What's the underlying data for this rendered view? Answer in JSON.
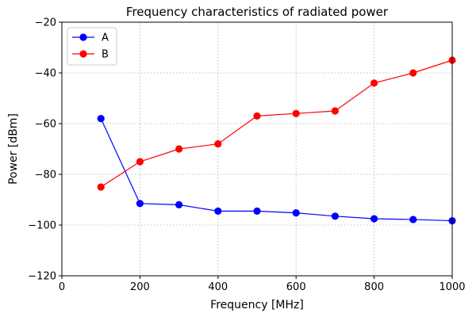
{
  "chart_data": {
    "type": "line",
    "title": "Frequency characteristics of radiated power",
    "xlabel": "Frequency [MHz]",
    "ylabel": "Power [dBm]",
    "xlim": [
      0,
      1000
    ],
    "ylim": [
      -120,
      -20
    ],
    "xticks": [
      0,
      200,
      400,
      600,
      800,
      1000
    ],
    "yticks": [
      -120,
      -100,
      -80,
      -60,
      -40,
      -20
    ],
    "grid": true,
    "legend_position": "top-left",
    "x": [
      100,
      200,
      300,
      400,
      500,
      600,
      700,
      800,
      900,
      1000
    ],
    "series": [
      {
        "name": "A",
        "color": "#0000ff",
        "values": [
          -58,
          -91.5,
          -92,
          -94.5,
          -94.5,
          -95.2,
          -96.5,
          -97.5,
          -97.8,
          -98.3
        ]
      },
      {
        "name": "B",
        "color": "#ff0000",
        "values": [
          -85,
          -75,
          -70,
          -68,
          -57,
          -56,
          -55,
          -44,
          -40,
          -35
        ]
      }
    ]
  }
}
